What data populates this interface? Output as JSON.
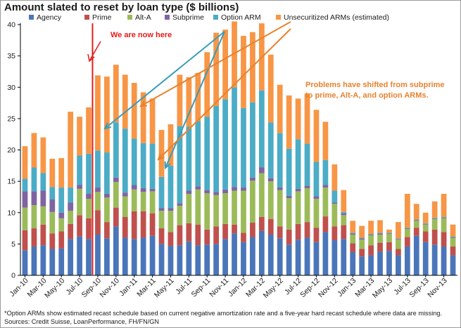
{
  "title": "Amount slated to reset by loan type ($ billions)",
  "footnotes": {
    "note": "*Option ARMs show estimated recast schedule based on current negative amortization rate and a five-year hard recast schedule where data are missing.",
    "sources": "Sources: Credit Suisse, LoanPerformance, FH/FN/GN"
  },
  "colors": {
    "Agency": "#4a76b9",
    "Prime": "#c0504d",
    "Alt-A": "#9bbb59",
    "Subprime": "#8064a2",
    "Option ARM": "#4bacc6",
    "Unsecuritized ARMs (estimated)": "#f79646",
    "marker_line": "#e31b1b",
    "annotation_text": "#e8822e",
    "teal_arrow": "#3a9cb8",
    "orange_arrow": "#e8822e"
  },
  "annotations": {
    "now_label": "We are now here",
    "problems": [
      "Problems have shifted from subprime",
      "to prime, Alt-A, and option ARMs."
    ]
  },
  "chart_data": {
    "type": "bar",
    "stacked": true,
    "title": "Amount slated to reset by loan type ($ billions)",
    "ylim": [
      0,
      40
    ],
    "yticks": [
      0,
      5,
      10,
      15,
      20,
      25,
      30,
      35,
      40
    ],
    "grid": false,
    "legend": "top",
    "xtick_labels": [
      "Jan-10",
      "Mar-10",
      "May-10",
      "Jul-10",
      "Sep-10",
      "Nov-10",
      "Jan-11",
      "Mar-11",
      "May-11",
      "Jul-11",
      "Sep-11",
      "Nov-11",
      "Jan-12",
      "Mar-12",
      "May-12",
      "Jul-12",
      "Sep-12",
      "Nov-12",
      "Jan-13",
      "Mar-13",
      "May-13",
      "Jul-13",
      "Sep-13",
      "Nov-13"
    ],
    "categories": [
      "Jan-10",
      "Feb-10",
      "Mar-10",
      "Apr-10",
      "May-10",
      "Jun-10",
      "Jul-10",
      "Aug-10",
      "Sep-10",
      "Oct-10",
      "Nov-10",
      "Dec-10",
      "Jan-11",
      "Feb-11",
      "Mar-11",
      "Apr-11",
      "May-11",
      "Jun-11",
      "Jul-11",
      "Aug-11",
      "Sep-11",
      "Oct-11",
      "Nov-11",
      "Dec-11",
      "Jan-12",
      "Feb-12",
      "Mar-12",
      "Apr-12",
      "May-12",
      "Jun-12",
      "Jul-12",
      "Aug-12",
      "Sep-12",
      "Oct-12",
      "Nov-12",
      "Dec-12",
      "Jan-13",
      "Feb-13",
      "Mar-13",
      "Apr-13",
      "May-13",
      "Jun-13",
      "Jul-13",
      "Aug-13",
      "Sep-13",
      "Oct-13",
      "Nov-13",
      "Dec-13"
    ],
    "series": [
      {
        "name": "Agency",
        "values": [
          4.0,
          4.6,
          4.8,
          4.2,
          4.3,
          5.8,
          6.2,
          5.8,
          6.5,
          5.9,
          7.8,
          6.0,
          5.8,
          6.0,
          6.3,
          5.0,
          4.7,
          4.8,
          5.4,
          4.8,
          4.9,
          5.0,
          5.8,
          6.7,
          5.3,
          6.1,
          7.1,
          6.5,
          5.9,
          4.9,
          5.7,
          6.0,
          5.3,
          6.9,
          5.6,
          5.8,
          3.7,
          3.0,
          3.2,
          3.8,
          3.9,
          3.2,
          4.6,
          6.3,
          5.3,
          4.9,
          4.6,
          3.2
        ]
      },
      {
        "name": "Prime",
        "values": [
          3.2,
          2.9,
          3.3,
          2.5,
          2.7,
          2.4,
          3.4,
          3.3,
          3.9,
          2.6,
          3.0,
          3.3,
          4.4,
          4.2,
          3.6,
          2.5,
          2.2,
          3.2,
          2.9,
          3.3,
          2.4,
          2.8,
          2.4,
          1.4,
          1.5,
          2.3,
          2.2,
          2.5,
          1.9,
          2.4,
          2.5,
          2.5,
          2.3,
          2.5,
          2.2,
          2.2,
          1.4,
          1.2,
          1.6,
          1.4,
          1.4,
          1.0,
          1.5,
          1.3,
          1.7,
          2.4,
          2.3,
          1.4
        ]
      },
      {
        "name": "Alt-A",
        "values": [
          3.6,
          3.7,
          2.9,
          3.4,
          2.1,
          2.1,
          4.2,
          3.1,
          2.9,
          3.9,
          4.1,
          3.3,
          3.5,
          3.1,
          3.5,
          2.8,
          3.4,
          3.1,
          4.7,
          5.6,
          5.8,
          5.0,
          4.9,
          5.4,
          6.7,
          6.7,
          7.0,
          6.0,
          5.8,
          5.0,
          5.2,
          5.4,
          4.6,
          4.6,
          3.6,
          1.6,
          1.4,
          1.5,
          1.6,
          1.3,
          1.3,
          1.5,
          1.3,
          1.1,
          1.1,
          1.7,
          2.2,
          1.4
        ]
      },
      {
        "name": "Subprime",
        "values": [
          2.6,
          2.2,
          2.5,
          2.0,
          0.9,
          1.3,
          0.6,
          0.8,
          0.7,
          0.6,
          0.7,
          0.6,
          0.7,
          0.6,
          0.4,
          0.4,
          0.4,
          0.4,
          0.5,
          0.5,
          0.5,
          0.5,
          0.6,
          0.6,
          0.5,
          0.5,
          0.9,
          0.5,
          0.4,
          0.4,
          0.4,
          0.4,
          0.4,
          0.4,
          0.2,
          0.3,
          0.2,
          0.2,
          0.1,
          0.2,
          0.1,
          0.1,
          0.1,
          0.1,
          0.1,
          0.1,
          0.1,
          0.1
        ]
      },
      {
        "name": "Option ARM",
        "values": [
          2.0,
          3.8,
          2.8,
          2.0,
          4.0,
          2.4,
          4.7,
          6.4,
          5.9,
          6.6,
          8.8,
          10.2,
          7.4,
          7.2,
          7.2,
          5.0,
          6.8,
          12.3,
          10.2,
          10.4,
          11.7,
          13.7,
          14.4,
          15.9,
          12.7,
          12.0,
          12.3,
          8.9,
          8.7,
          7.5,
          7.9,
          6.7,
          5.5,
          4.0,
          1.9,
          0.2,
          0.1,
          0.1,
          0.1,
          0.1,
          0.1,
          0.1,
          0.1,
          0.1,
          0.1,
          0.1,
          0.1,
          0.1
        ]
      },
      {
        "name": "Unsecuritized ARMs (estimated)",
        "values": [
          5.2,
          5.5,
          5.7,
          4.5,
          4.7,
          12.1,
          6.2,
          7.4,
          12.0,
          12.1,
          9.2,
          8.6,
          8.9,
          8.1,
          7.2,
          7.5,
          6.6,
          8.2,
          7.9,
          7.7,
          10.3,
          11.7,
          11.1,
          10.5,
          11.5,
          11.2,
          10.7,
          10.8,
          7.7,
          8.5,
          6.5,
          8.0,
          8.3,
          6.1,
          4.2,
          3.5,
          1.9,
          1.9,
          2.1,
          2.0,
          0.5,
          2.6,
          5.4,
          2.5,
          1.7,
          2.6,
          3.7,
          1.9
        ]
      }
    ]
  }
}
